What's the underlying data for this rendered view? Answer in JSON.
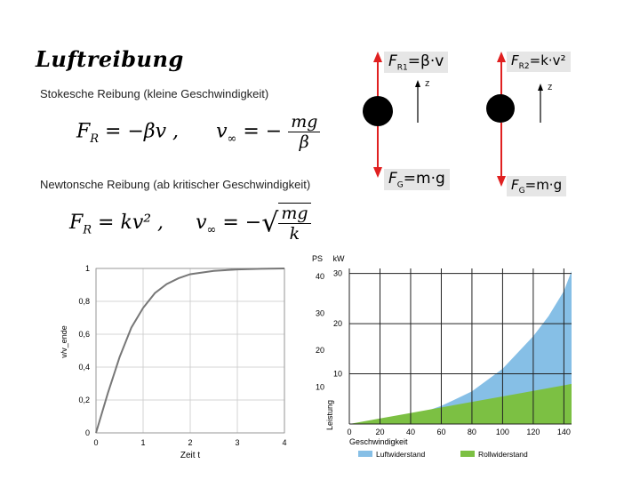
{
  "title": "Luftreibung",
  "stokes": {
    "text": "Stokesche Reibung (kleine Geschwindigkeit)",
    "eq1_lhs": "F",
    "eq1_sub": "R",
    "eq1_rhs": " = −βv ,",
    "eq2_lhs": "v",
    "eq2_sub": "∞",
    "eq2_eq": " = −",
    "eq2_num": "mg",
    "eq2_den": "β"
  },
  "newton": {
    "text": "Newtonsche Reibung (ab kritischer Geschwindigkeit)",
    "eq1_lhs": "F",
    "eq1_sub": "R",
    "eq1_rhs": " = kv² ,",
    "eq2_lhs": "v",
    "eq2_sub": "∞",
    "eq2_eq": " = −",
    "eq2_num": "mg",
    "eq2_den": "k"
  },
  "diagram_left": {
    "friction_main": "F",
    "friction_sub": "R1",
    "friction_rest": "=β·v",
    "gravity_main": "F",
    "gravity_sub": "G",
    "gravity_rest": "=m·g",
    "z": "z"
  },
  "diagram_right": {
    "friction_main": "F",
    "friction_sub": "R2",
    "friction_rest": "=k·v²",
    "gravity_main": "F",
    "gravity_sub": "G",
    "gravity_rest": "=m·g",
    "z": "z"
  },
  "colors": {
    "arrow": "#e02020",
    "air": "#86bfe6",
    "roll": "#7cc043",
    "grid": "#222222",
    "curve": "#777777"
  },
  "chart_data": [
    {
      "type": "line",
      "title": "",
      "xlabel": "Zeit t",
      "ylabel": "v/v_ende",
      "x_ticks": [
        "0",
        "1",
        "2",
        "3",
        "4"
      ],
      "y_ticks": [
        "0",
        "0,2",
        "0,4",
        "0,6",
        "0,8",
        "1"
      ],
      "xlim": [
        0,
        4
      ],
      "ylim": [
        0,
        1
      ],
      "grid": true,
      "series": [
        {
          "x": [
            0,
            0.25,
            0.5,
            0.75,
            1.0,
            1.25,
            1.5,
            1.75,
            2.0,
            2.5,
            3.0,
            3.5,
            4.0
          ],
          "values": [
            0,
            0.24,
            0.46,
            0.64,
            0.76,
            0.85,
            0.905,
            0.94,
            0.965,
            0.985,
            0.994,
            0.998,
            1.0
          ]
        }
      ]
    },
    {
      "type": "area",
      "xlabel": "Geschwindigkeit",
      "ylabel": "Leistung",
      "x_ticks": [
        "0",
        "20",
        "40",
        "60",
        "80",
        "100",
        "120",
        "140"
      ],
      "ps_label": "PS",
      "kw_label": "kW",
      "ps_ticks": [
        "10",
        "20",
        "30",
        "40"
      ],
      "kw_ticks": [
        "10",
        "20",
        "30"
      ],
      "xlim": [
        0,
        145
      ],
      "ylim_kw": [
        0,
        31
      ],
      "grid": true,
      "series": [
        {
          "name": "Luftwiderstand",
          "x": [
            0,
            20,
            40,
            60,
            80,
            100,
            120,
            130,
            140,
            145
          ],
          "values": [
            0,
            0.3,
            1.5,
            3.6,
            6.5,
            11.0,
            17.5,
            21.5,
            26.5,
            30.5
          ]
        },
        {
          "name": "Rollwiderstand",
          "x": [
            0,
            20,
            40,
            60,
            80,
            100,
            120,
            140,
            145
          ],
          "values": [
            0,
            1.1,
            2.2,
            3.3,
            4.4,
            5.5,
            6.6,
            7.7,
            8.0
          ]
        }
      ],
      "legend": [
        {
          "label": "Luftwiderstand",
          "color": "#86bfe6"
        },
        {
          "label": "Rollwiderstand",
          "color": "#7cc043"
        }
      ],
      "legend_position": "bottom"
    }
  ]
}
